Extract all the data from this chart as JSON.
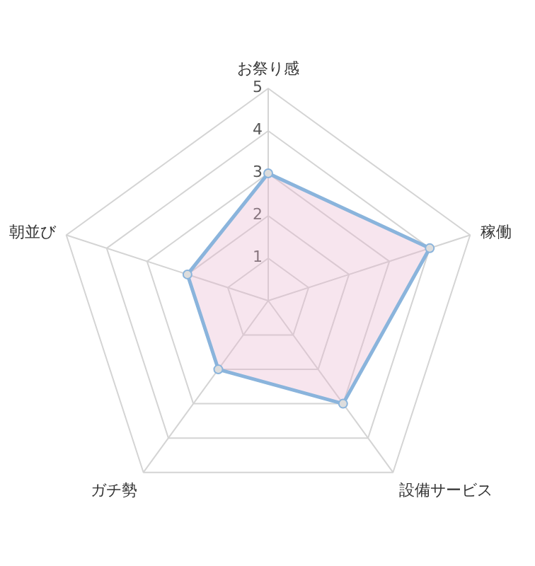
{
  "chart_data": {
    "type": "radar",
    "categories": [
      "お祭り感",
      "稼働",
      "設備サービス",
      "ガチ勢",
      "朝並び"
    ],
    "series": [
      {
        "color": "#8ab4dc",
        "values": [
          3,
          4,
          3,
          2,
          2
        ]
      }
    ],
    "ylim": [
      0,
      5
    ],
    "yticks": [
      1,
      2,
      3,
      4,
      5
    ],
    "grid": true,
    "marker": "circle"
  }
}
